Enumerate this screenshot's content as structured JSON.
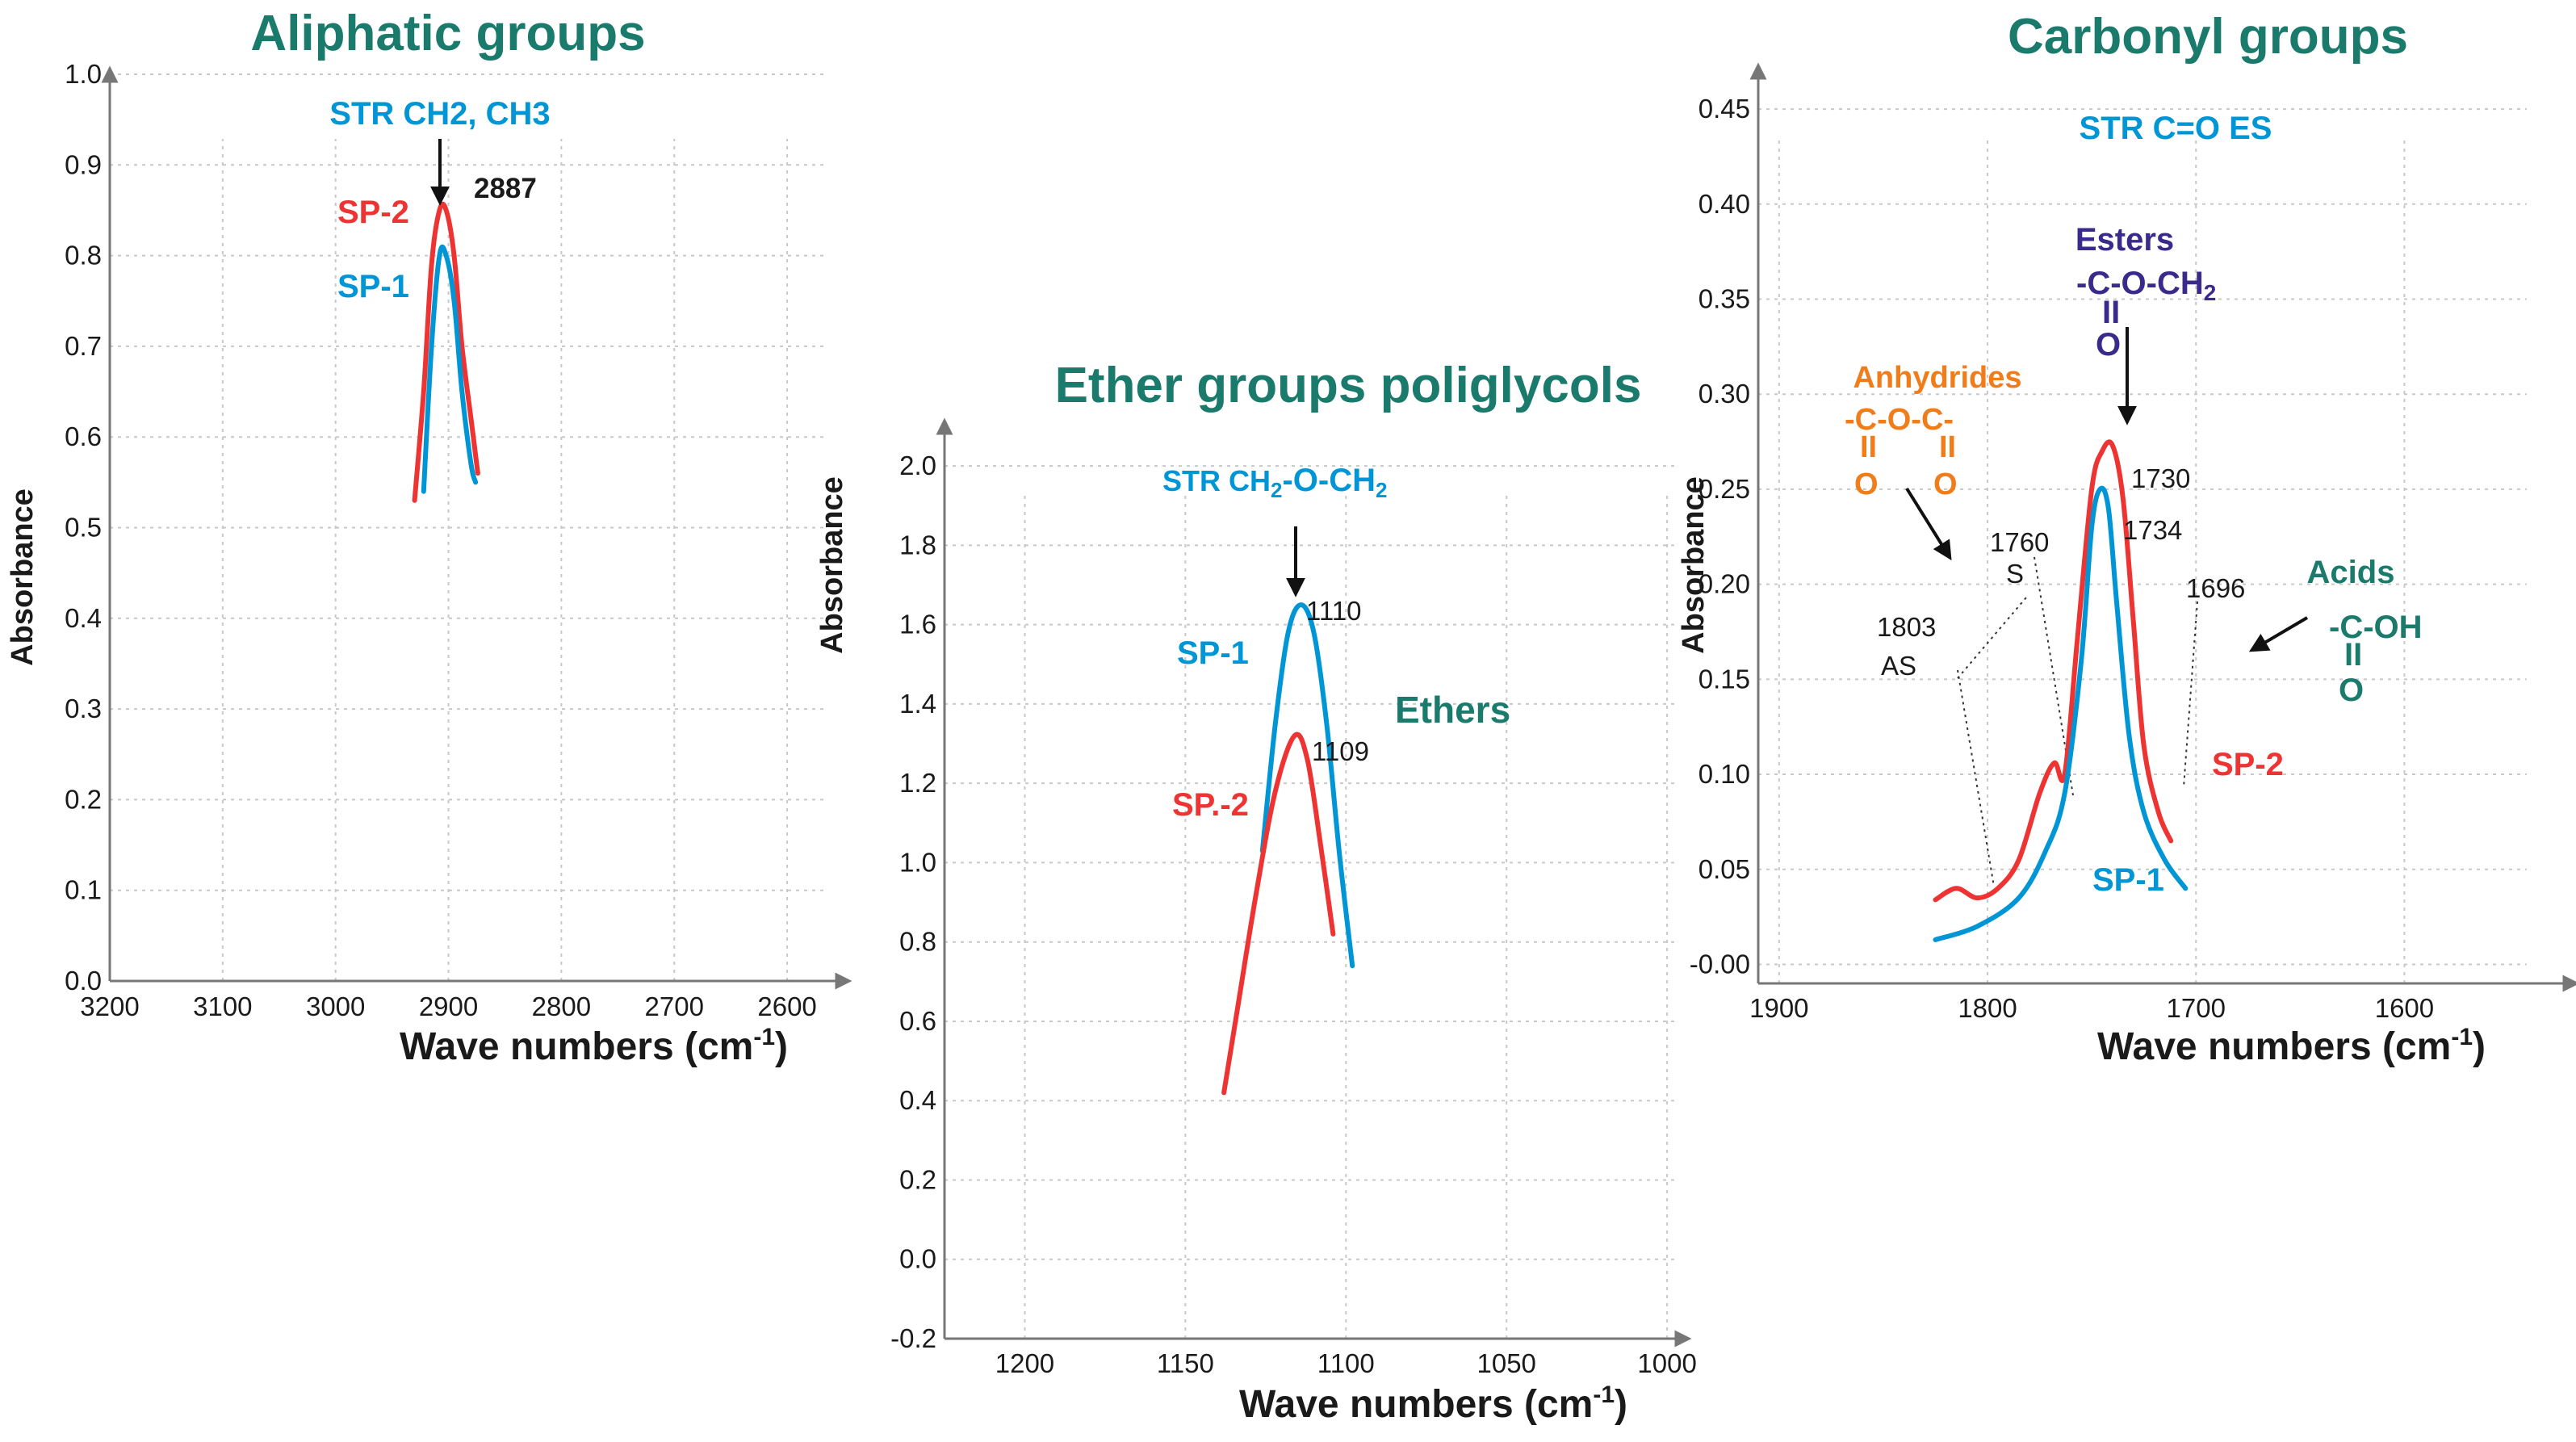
{
  "chart_data": [
    {
      "type": "line",
      "title": "Aliphatic groups",
      "xlabel": "Wave numbers (cm-1)",
      "ylabel": "Absorbance",
      "xlim": [
        3200,
        2550
      ],
      "ylim": [
        0.0,
        1.0
      ],
      "x_ticks": [
        "3200",
        "3100",
        "3000",
        "2900",
        "2800",
        "2700",
        "2600"
      ],
      "y_ticks": [
        "0.0",
        "0.1",
        "0.2",
        "0.3",
        "0.4",
        "0.5",
        "0.6",
        "0.7",
        "0.8",
        "0.9",
        "1.0"
      ],
      "series": [
        {
          "name": "SP-2",
          "color": "#ee3333",
          "x": [
            2930,
            2922,
            2915,
            2908,
            2902,
            2895,
            2888,
            2880,
            2874
          ],
          "y": [
            0.53,
            0.65,
            0.79,
            0.85,
            0.85,
            0.8,
            0.7,
            0.62,
            0.56
          ]
        },
        {
          "name": "SP-1",
          "color": "#0096d6",
          "x": [
            2922,
            2915,
            2908,
            2902,
            2895,
            2888,
            2880,
            2876
          ],
          "y": [
            0.54,
            0.7,
            0.8,
            0.8,
            0.75,
            0.65,
            0.57,
            0.55
          ]
        }
      ],
      "annotations": {
        "group": "STR CH2, CH3",
        "peak": "2887",
        "label_sp2": "SP-2",
        "label_sp1": "SP-1"
      }
    },
    {
      "type": "line",
      "title": "Ether groups poliglycols",
      "xlabel": "Wave numbers (cm-1)",
      "ylabel": "Absorbance",
      "xlim": [
        1225,
        995
      ],
      "ylim": [
        -0.2,
        2.1
      ],
      "x_ticks": [
        "1200",
        "1150",
        "1100",
        "1050",
        "1000"
      ],
      "y_ticks": [
        "-0.2",
        "0.0",
        "0.2",
        "0.4",
        "0.6",
        "0.8",
        "1.0",
        "1.2",
        "1.4",
        "1.6",
        "1.8",
        "2.0"
      ],
      "series": [
        {
          "name": "SP-1",
          "color": "#0096d6",
          "x": [
            1126,
            1122,
            1118,
            1114,
            1110,
            1106,
            1102,
            1098
          ],
          "y": [
            1.03,
            1.35,
            1.58,
            1.65,
            1.58,
            1.35,
            1.02,
            0.74
          ]
        },
        {
          "name": "SP.-2",
          "color": "#ee3333",
          "x": [
            1138,
            1134,
            1128,
            1122,
            1116,
            1112,
            1108,
            1104
          ],
          "y": [
            0.42,
            0.62,
            0.92,
            1.18,
            1.32,
            1.26,
            1.05,
            0.82
          ]
        }
      ],
      "annotations": {
        "group": "STR CH2-O-CH2",
        "peak_sp1": "1110",
        "peak_sp2": "1109",
        "group_name": "Ethers",
        "label_sp1": "SP-1",
        "label_sp2": "SP.-2"
      }
    },
    {
      "type": "line",
      "title": "Carbonyl groups",
      "subtitle": "STR C=O ES",
      "xlabel": "Wave numbers (cm-1)",
      "ylabel": "Absorbance",
      "xlim": [
        1910,
        1520
      ],
      "ylim": [
        -0.01,
        0.47
      ],
      "x_ticks": [
        "1900",
        "1800",
        "1700",
        "1600"
      ],
      "y_ticks": [
        "-0.00",
        "0.05",
        "0.10",
        "0.15",
        "0.20",
        "0.25",
        "0.30",
        "0.35",
        "0.40",
        "0.45"
      ],
      "series": [
        {
          "name": "SP-2",
          "color": "#ee3333",
          "x": [
            1825,
            1815,
            1805,
            1795,
            1785,
            1775,
            1768,
            1763,
            1757,
            1750,
            1745,
            1740,
            1735,
            1730,
            1725,
            1718,
            1712
          ],
          "y": [
            0.034,
            0.04,
            0.035,
            0.04,
            0.055,
            0.09,
            0.106,
            0.1,
            0.17,
            0.25,
            0.27,
            0.273,
            0.245,
            0.18,
            0.115,
            0.08,
            0.065
          ]
        },
        {
          "name": "SP-1",
          "color": "#0096d6",
          "x": [
            1825,
            1805,
            1785,
            1772,
            1763,
            1755,
            1750,
            1746,
            1742,
            1738,
            1732,
            1725,
            1715,
            1705
          ],
          "y": [
            0.013,
            0.02,
            0.035,
            0.06,
            0.09,
            0.16,
            0.23,
            0.25,
            0.24,
            0.19,
            0.12,
            0.08,
            0.055,
            0.04
          ]
        }
      ],
      "annotations": {
        "peak_sp2": "1730",
        "peak_sp1": "1734",
        "s_peak": "1760",
        "s_label": "S",
        "as_peak": "1803",
        "as_label": "AS",
        "acid_peak": "1696",
        "esters": {
          "name": "Esters",
          "formula_top": "-C-O-CH",
          "formula_sub": "2",
          "formula_dbl": "II",
          "formula_bottom": "O"
        },
        "anhydrides": {
          "name": "Anhydrides",
          "formula_top": "-C-O-C-",
          "formula_dbl": "II",
          "formula_bottom": "O"
        },
        "acids": {
          "name": "Acids",
          "formula_top": "-C-OH",
          "formula_dbl": "II",
          "formula_bottom": "O"
        },
        "label_sp2": "SP-2",
        "label_sp1": "SP-1"
      }
    }
  ],
  "labels": {
    "xlabel_main": "Wave numbers (cm",
    "xlabel_sup": "-1",
    "xlabel_end": ")",
    "ether_group_pre": "STR CH",
    "ether_group_sub1": "2",
    "ether_group_mid": "-O-CH",
    "ether_group_sub2": "2"
  }
}
